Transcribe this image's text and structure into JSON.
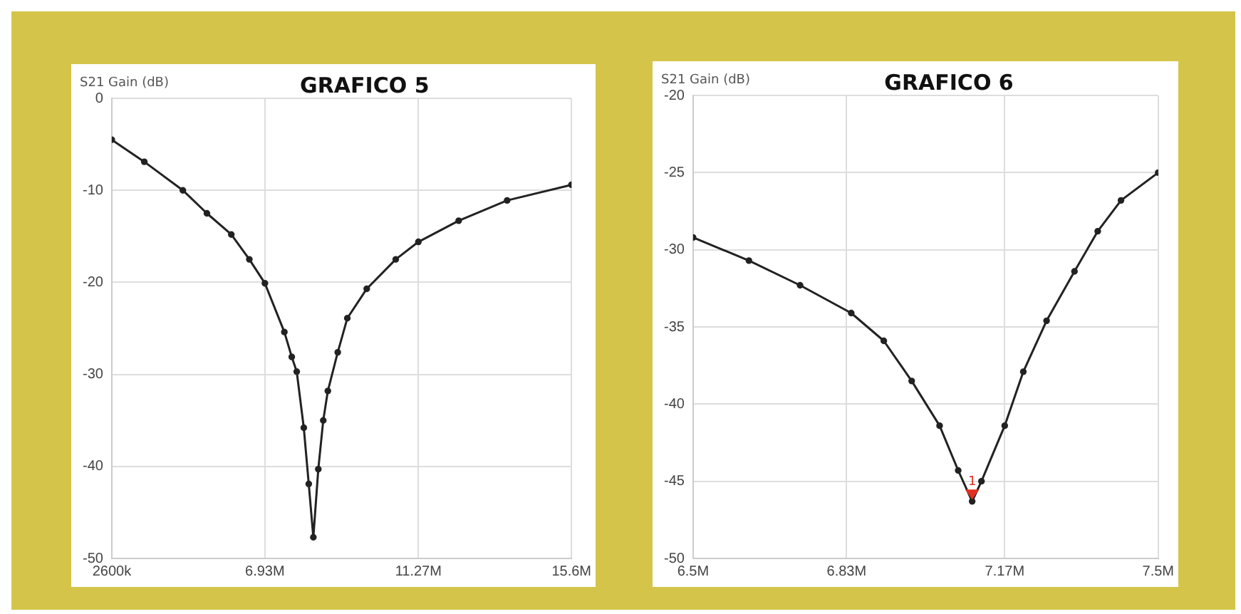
{
  "chart_data": [
    {
      "type": "line",
      "title": "GRAFICO 5",
      "ylabel": "S21 Gain (dB)",
      "grid": true,
      "marker": "circle",
      "x": [
        2600000,
        3520000,
        4610000,
        5290000,
        5980000,
        6490000,
        6930000,
        7480000,
        7690000,
        7830000,
        8030000,
        8170000,
        8300000,
        8440000,
        8580000,
        8710000,
        8990000,
        9260000,
        9810000,
        10630000,
        11270000,
        12410000,
        13780000,
        15600000
      ],
      "series": [
        {
          "color": "#222222",
          "values": [
            -4.5,
            -6.9,
            -10,
            -12.5,
            -14.8,
            -17.5,
            -20.1,
            -25.4,
            -28.1,
            -29.7,
            -35.8,
            -41.9,
            -47.7,
            -40.3,
            -35,
            -31.8,
            -27.6,
            -23.9,
            -20.7,
            -17.5,
            -15.6,
            -13.3,
            -11.1,
            -9.4
          ]
        }
      ],
      "xlim": [
        2600000,
        15600000
      ],
      "xticks": [
        {
          "value": 2600000,
          "label": "2600k"
        },
        {
          "value": 6930000,
          "label": "6.93M"
        },
        {
          "value": 11270000,
          "label": "11.27M"
        },
        {
          "value": 15600000,
          "label": "15.6M"
        }
      ],
      "ylim": [
        -50,
        0
      ],
      "yticks": [
        -50,
        -40,
        -30,
        -20,
        -10,
        0
      ]
    },
    {
      "type": "line",
      "title": "GRAFICO 6",
      "ylabel": "S21 Gain (dB)",
      "grid": true,
      "marker": "circle",
      "x": [
        6500000,
        6620000,
        6730000,
        6840000,
        6910000,
        6970000,
        7030000,
        7070000,
        7100000,
        7120000,
        7170000,
        7210000,
        7260000,
        7320000,
        7370000,
        7420000,
        7500000
      ],
      "series": [
        {
          "color": "#222222",
          "values": [
            -29.2,
            -30.7,
            -32.3,
            -34.1,
            -35.9,
            -38.5,
            -41.4,
            -44.3,
            -46.3,
            -45,
            -41.4,
            -37.9,
            -34.6,
            -31.4,
            -28.8,
            -26.8,
            -25
          ]
        }
      ],
      "xlim": [
        6500000,
        7500000
      ],
      "xticks": [
        {
          "value": 6500000,
          "label": "6.5M"
        },
        {
          "value": 6830000,
          "label": "6.83M"
        },
        {
          "value": 7170000,
          "label": "7.17M"
        },
        {
          "value": 7500000,
          "label": "7.5M"
        }
      ],
      "ylim": [
        -50,
        -20
      ],
      "yticks": [
        -50,
        -45,
        -40,
        -35,
        -30,
        -25,
        -20
      ],
      "annotations": [
        {
          "text": "1",
          "x": 7100000,
          "y": -46
        }
      ]
    }
  ]
}
